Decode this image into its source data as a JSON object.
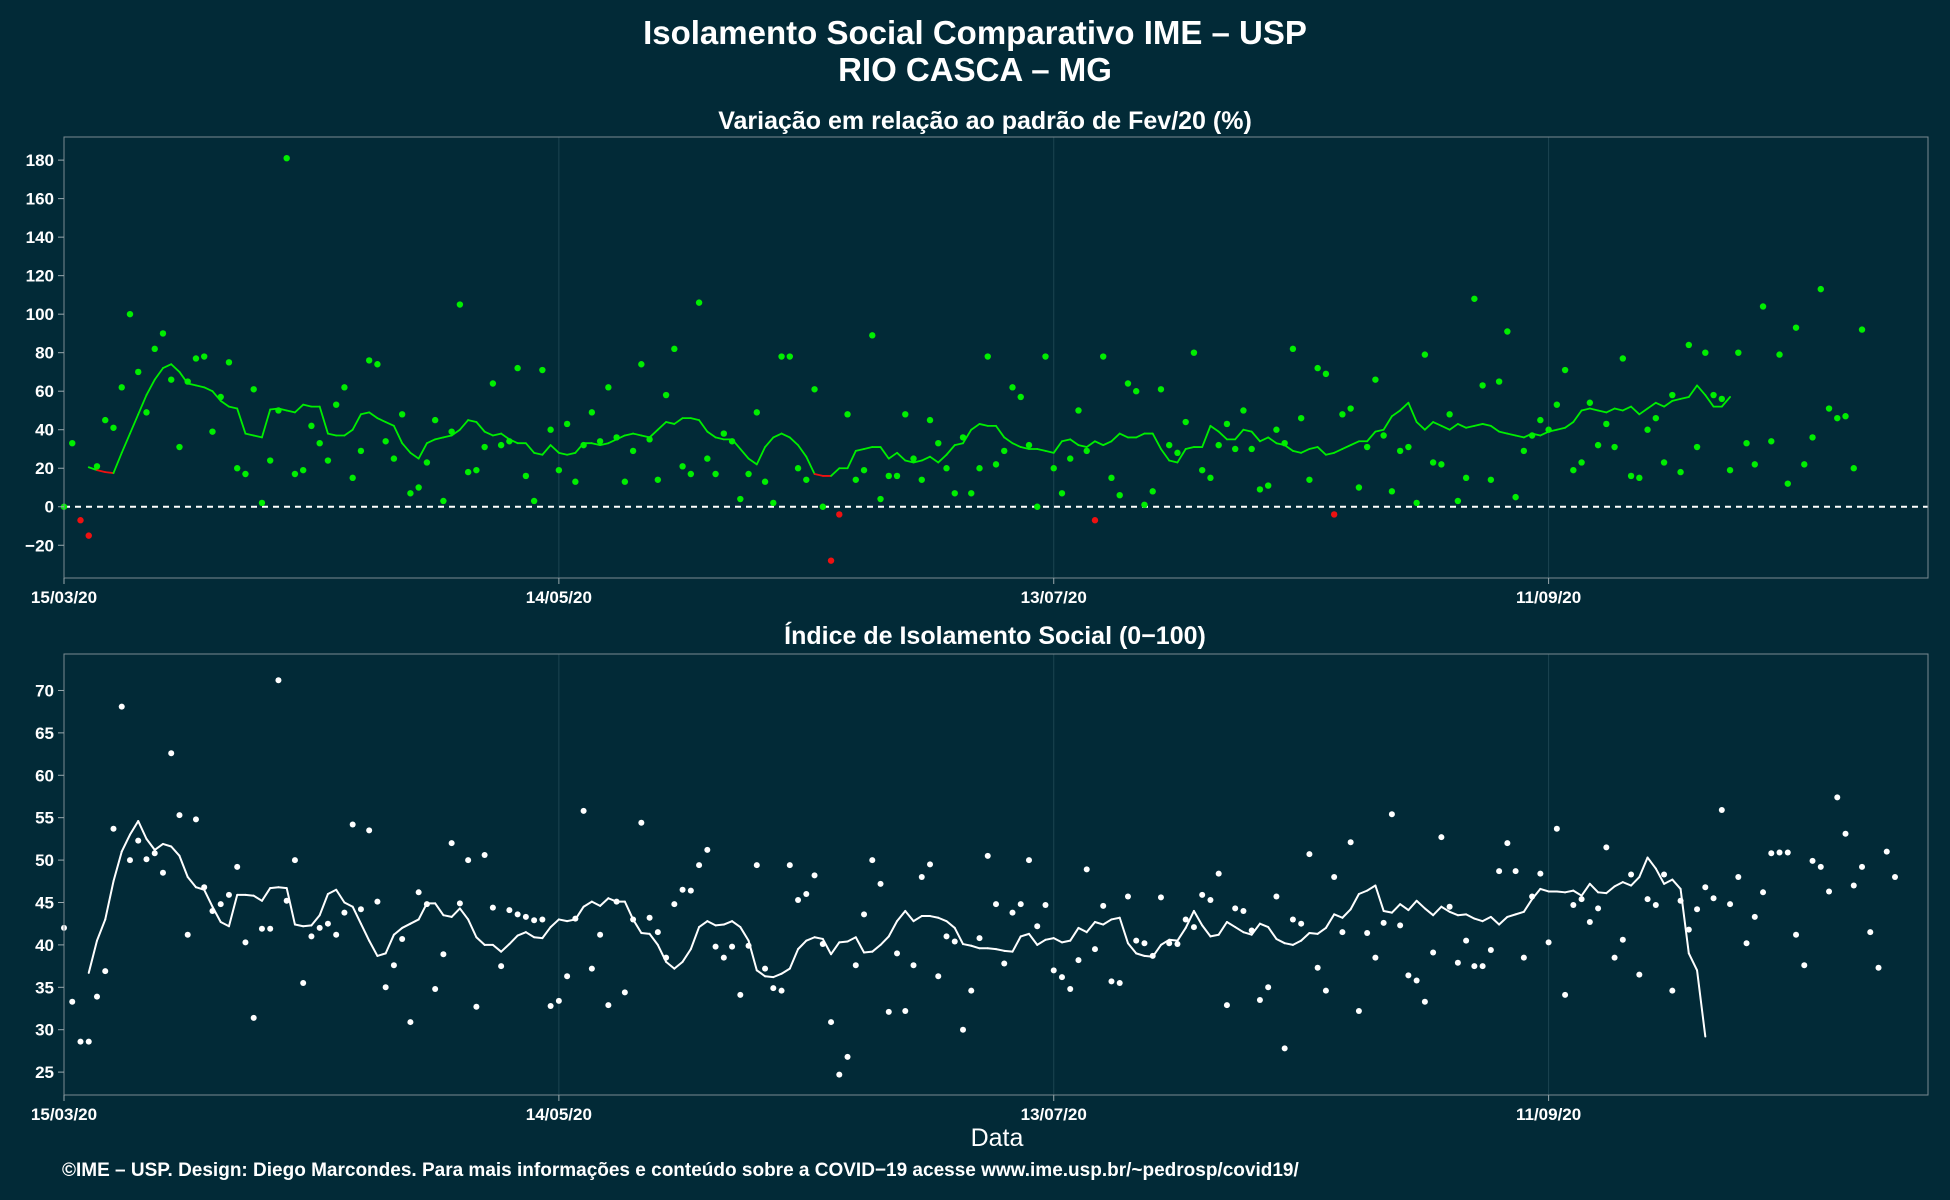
{
  "title_line1": "Isolamento Social Comparativo IME – USP",
  "title_line2": "RIO CASCA – MG",
  "xlabel": "Data",
  "footer": "©IME – USP. Design: Diego Marcondes. Para mais informações e conteúdo sobre a COVID−19 acesse www.ime.usp.br/~pedrosp/covid19/",
  "colors": {
    "background": "#022a37",
    "positive": "#00ee00",
    "negative": "#ee1111",
    "index": "#ffffff"
  },
  "chart_data": [
    {
      "type": "scatter",
      "title": "Variação em relação ao padrão de Fev/20 (%)",
      "xlabel": "",
      "ylabel": "",
      "x_type": "date",
      "x_range": [
        "15/03/20",
        "27/10/20"
      ],
      "x_ticks": [
        "15/03/20",
        "14/05/20",
        "13/07/20",
        "11/09/20"
      ],
      "ylim": [
        -37,
        192
      ],
      "y_ticks": [
        "−20",
        "0",
        "20",
        "40",
        "60",
        "80",
        "100",
        "120",
        "140",
        "160",
        "180"
      ],
      "reference_line": 0,
      "series": [
        {
          "kind": "points",
          "x_start": "15/03/20",
          "values": [
            0,
            33,
            -7,
            -15,
            21,
            45,
            41,
            62,
            100,
            70,
            49,
            82,
            90,
            66,
            31,
            65,
            77,
            78,
            39,
            57,
            75,
            20,
            17,
            61,
            2,
            24,
            50,
            181,
            17,
            19,
            42,
            33,
            24,
            53,
            62,
            15,
            29,
            76,
            74,
            34,
            25,
            48,
            7,
            10,
            23,
            45,
            3,
            39,
            105,
            18,
            19,
            31,
            64,
            32,
            34,
            72,
            16,
            3,
            71,
            40,
            19,
            43,
            13,
            32,
            49,
            34,
            62,
            36,
            13,
            29,
            74,
            35,
            14,
            58,
            82,
            21,
            17,
            106,
            25,
            17,
            38,
            34,
            4,
            17,
            49,
            13,
            2,
            78,
            78,
            20,
            14,
            61,
            0,
            -28,
            -4,
            48,
            14,
            19,
            89,
            4,
            16,
            16,
            48,
            25,
            14,
            45,
            33,
            20,
            7,
            36,
            7,
            20,
            78,
            22,
            29,
            62,
            57,
            32,
            0,
            78,
            20,
            7,
            25,
            50,
            29,
            -7,
            78,
            15,
            6,
            64,
            60,
            1,
            8,
            61,
            32,
            28,
            44,
            80,
            19,
            15,
            32,
            43,
            30,
            50,
            30,
            9,
            11,
            40,
            33,
            82,
            46,
            14,
            72,
            69,
            -4,
            48,
            51,
            10,
            31,
            66,
            37,
            8,
            29,
            31,
            2,
            79,
            23,
            22,
            48,
            3,
            15,
            108,
            63,
            14,
            65,
            91,
            5,
            29,
            37,
            45,
            40,
            53,
            71,
            19,
            23,
            54,
            32,
            43,
            31,
            77,
            16,
            15,
            40,
            46,
            23,
            58,
            18,
            84,
            31,
            80,
            58,
            56,
            19,
            80,
            33,
            22,
            104,
            34,
            79,
            12,
            93,
            22,
            36,
            113,
            51,
            46,
            47,
            20,
            92
          ]
        },
        {
          "kind": "moving_average",
          "x_start": "18/03/20",
          "values": [
            20.5,
            19,
            18,
            17.5,
            28,
            38,
            48,
            58,
            66,
            72,
            74,
            70,
            64,
            63,
            62,
            60,
            55,
            52,
            51,
            38,
            37,
            36,
            50.5,
            51,
            50,
            49,
            53,
            52,
            52,
            38,
            37,
            37,
            40,
            48,
            49,
            46,
            44,
            42,
            33,
            28,
            25,
            33,
            35,
            36,
            37,
            40,
            45,
            44,
            39,
            37,
            38,
            35,
            33,
            33,
            28,
            27,
            32,
            28,
            27,
            28,
            33,
            33,
            32,
            33,
            35,
            37,
            38,
            37,
            36,
            40,
            44,
            43,
            46,
            46,
            45,
            39,
            36,
            35,
            35,
            30,
            25,
            22,
            31,
            36,
            38,
            36,
            32,
            26,
            17,
            16,
            16,
            20,
            20,
            29,
            30,
            31,
            31,
            25,
            28,
            24,
            23,
            24,
            26,
            23,
            27,
            32,
            33,
            40,
            43,
            42,
            42,
            36,
            33,
            31,
            30,
            30,
            29,
            28,
            34,
            35,
            32,
            31,
            34,
            32,
            34,
            38,
            36,
            36,
            38,
            38,
            30,
            24,
            23,
            30,
            31,
            31,
            42,
            39,
            35,
            35,
            40,
            39,
            34,
            36,
            33,
            32,
            29,
            28,
            30,
            31,
            27,
            28,
            30,
            32,
            34,
            34,
            39,
            40,
            47,
            50,
            54,
            44,
            40,
            44,
            42,
            40,
            43,
            41,
            42,
            43,
            42,
            39,
            38,
            37,
            36,
            38,
            37,
            39,
            40,
            41,
            44,
            50,
            51,
            50,
            49,
            51,
            50,
            52,
            48,
            51,
            54,
            52,
            55,
            56,
            57,
            63,
            58,
            52,
            52,
            57
          ]
        }
      ]
    },
    {
      "type": "scatter",
      "title": "Índice de Isolamento Social (0−100)",
      "xlabel": "Data",
      "ylabel": "",
      "x_type": "date",
      "x_range": [
        "15/03/20",
        "27/10/20"
      ],
      "x_ticks": [
        "15/03/20",
        "14/05/20",
        "13/07/20",
        "11/09/20"
      ],
      "ylim": [
        22.3,
        74.3
      ],
      "y_ticks": [
        "25",
        "30",
        "35",
        "40",
        "45",
        "50",
        "55",
        "60",
        "65",
        "70"
      ],
      "series": [
        {
          "kind": "points",
          "x_start": "15/03/20",
          "values": [
            42,
            33.3,
            28.6,
            28.6,
            33.9,
            36.9,
            53.7,
            68.1,
            50,
            52.3,
            50.1,
            50.8,
            48.5,
            62.6,
            55.3,
            41.2,
            54.8,
            46.8,
            44,
            44.8,
            45.9,
            49.2,
            40.3,
            31.4,
            41.9,
            41.9,
            71.2,
            45.2,
            50,
            35.5,
            41,
            42,
            42.5,
            41.2,
            43.8,
            54.2,
            44.2,
            53.5,
            45.1,
            35,
            37.6,
            40.7,
            30.9,
            46.2,
            44.8,
            34.8,
            38.9,
            52,
            44.9,
            50,
            32.7,
            50.6,
            44.4,
            37.5,
            44.1,
            43.6,
            43.3,
            42.9,
            43,
            32.8,
            33.4,
            36.3,
            43.1,
            55.8,
            37.2,
            41.2,
            32.9,
            45.1,
            34.4,
            43,
            54.4,
            43.2,
            41.5,
            38.5,
            44.8,
            46.5,
            46.4,
            49.4,
            51.2,
            39.8,
            38.5,
            39.8,
            34.1,
            39.9,
            49.4,
            37.2,
            34.9,
            34.6,
            49.4,
            45.3,
            46,
            48.2,
            40.1,
            30.9,
            24.7,
            26.8,
            37.6,
            43.6,
            50,
            47.2,
            32.1,
            39,
            32.2,
            37.6,
            48,
            49.5,
            36.3,
            41,
            40.4,
            30,
            34.6,
            40.8,
            50.5,
            44.8,
            37.8,
            43.8,
            44.8,
            50,
            42.2,
            44.7,
            37,
            36.2,
            34.8,
            38.2,
            48.9,
            39.5,
            44.6,
            35.7,
            35.5,
            45.7,
            40.5,
            40.2,
            38.7,
            45.6,
            40.2,
            40.1,
            43,
            42.1,
            45.9,
            45.3,
            48.4,
            32.9,
            44.3,
            44,
            41.7,
            33.5,
            35,
            45.7,
            27.8,
            43,
            42.5,
            50.7,
            37.3,
            34.6,
            48,
            41.5,
            52.1,
            32.2,
            41.4,
            38.5,
            42.6,
            55.4,
            42.3,
            36.4,
            35.8,
            33.3,
            39.1,
            52.7,
            44.5,
            37.9,
            40.5,
            37.5,
            37.5,
            39.4,
            48.7,
            52,
            48.7,
            38.5,
            45.7,
            48.4,
            40.3,
            53.7,
            34.1,
            44.7,
            45.4,
            42.7,
            44.3,
            51.5,
            38.5,
            40.6,
            48.3,
            36.5,
            45.4,
            44.7,
            48.3,
            34.6,
            45.2,
            41.8,
            44.2,
            46.8,
            45.5,
            55.9,
            44.8,
            48,
            40.2,
            43.3,
            46.2,
            50.8,
            50.9,
            50.9,
            41.2,
            37.6,
            49.9,
            49.2,
            46.3,
            57.4,
            53.1,
            47,
            49.2,
            41.5,
            37.3,
            51,
            48
          ]
        },
        {
          "kind": "moving_average",
          "x_start": "18/03/20",
          "values": [
            36.7,
            40.5,
            43,
            47.5,
            51,
            53,
            54.6,
            52.5,
            51.2,
            51.9,
            51.6,
            50.5,
            48,
            46.8,
            46.5,
            44.5,
            42.7,
            42.2,
            45.9,
            45.9,
            45.8,
            45.2,
            46.7,
            46.8,
            46.7,
            42.4,
            42.2,
            42.3,
            43.5,
            46,
            46.5,
            45,
            44.5,
            42.5,
            40.5,
            38.7,
            39,
            41.2,
            42,
            42.5,
            43,
            44.9,
            44.9,
            43.5,
            43.3,
            44.3,
            43,
            40.9,
            40,
            40,
            39.2,
            40.1,
            41.1,
            41.5,
            40.9,
            40.8,
            42.1,
            43,
            42.8,
            43,
            44.5,
            45.1,
            44.6,
            45.5,
            45.1,
            45.1,
            43,
            41.4,
            41.3,
            40,
            38,
            37.2,
            38,
            39.5,
            42.1,
            42.8,
            42.3,
            42.4,
            42.8,
            42.1,
            40.5,
            37,
            36.3,
            36.2,
            36.6,
            37.2,
            39.5,
            40.5,
            40.9,
            40.7,
            38.9,
            40.3,
            40.4,
            40.9,
            39.1,
            39.2,
            40,
            41,
            42.8,
            44,
            42.8,
            43.4,
            43.4,
            43.2,
            42.8,
            42,
            40.1,
            39.9,
            39.6,
            39.6,
            39.5,
            39.3,
            39.2,
            41,
            41.3,
            40,
            40.6,
            40.8,
            40.3,
            40.5,
            42,
            41.5,
            42.7,
            42.4,
            43,
            43.2,
            40.2,
            39,
            38.7,
            38.6,
            40,
            40.6,
            40.5,
            42,
            44,
            42.3,
            41,
            41.2,
            42.7,
            42.1,
            41.5,
            41.2,
            42.5,
            42.1,
            40.7,
            40.2,
            40,
            40.5,
            41.4,
            41.3,
            42,
            43.6,
            43.2,
            44.2,
            46,
            46.4,
            47,
            44,
            43.8,
            44.8,
            44.1,
            45.2,
            44.3,
            43.5,
            44.5,
            43.9,
            43.5,
            43.6,
            43.1,
            42.8,
            43.3,
            42.4,
            43.3,
            43.6,
            43.9,
            45.4,
            46.6,
            46.3,
            46.3,
            46.2,
            46.4,
            45.8,
            47.2,
            46.2,
            46.1,
            46.9,
            47.4,
            47,
            48,
            50.3,
            49,
            47.2,
            47.7,
            46.6,
            39,
            37,
            29.2
          ]
        }
      ]
    }
  ]
}
